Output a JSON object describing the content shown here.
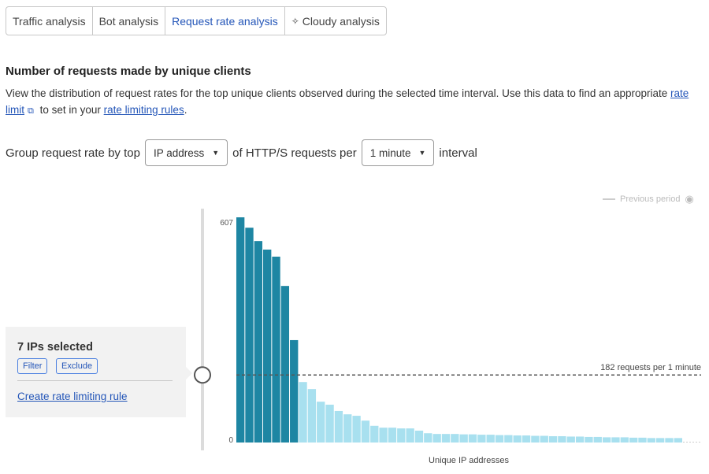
{
  "tabs": [
    {
      "label": "Traffic analysis"
    },
    {
      "label": "Bot analysis"
    },
    {
      "label": "Request rate analysis",
      "active": true
    },
    {
      "label": "Cloudy analysis",
      "icon": "sparkle-icon"
    }
  ],
  "section": {
    "title": "Number of requests made by unique clients",
    "desc_pre": "View the distribution of request rates for the top unique clients observed during the selected time interval. Use this data to find an appropriate ",
    "link1": "rate limit",
    "desc_mid": " to set in your ",
    "link2": "rate limiting rules",
    "desc_post": "."
  },
  "group": {
    "prefix": "Group request rate by top",
    "select1": "IP address",
    "middle": "of HTTP/S requests per",
    "select2": "1 minute",
    "suffix": "interval"
  },
  "legend": {
    "previous": "Previous period"
  },
  "selection": {
    "title": "7 IPs selected",
    "filter": "Filter",
    "exclude": "Exclude",
    "create": "Create rate limiting rule"
  },
  "colors": {
    "selected": "#1e86a3",
    "unselected": "#a8e0ef",
    "accent": "#2456b8"
  },
  "chart_data": {
    "type": "bar",
    "xlabel": "Unique IP addresses",
    "ylim": [
      0,
      607
    ],
    "yticks": [
      "0",
      "607"
    ],
    "threshold": {
      "value": 182,
      "label": "182 requests per 1 minute"
    },
    "selected_count": 7,
    "values": [
      607,
      579,
      543,
      520,
      501,
      422,
      276,
      163,
      144,
      110,
      102,
      85,
      76,
      72,
      59,
      45,
      40,
      40,
      38,
      38,
      32,
      25,
      23,
      23,
      23,
      22,
      22,
      21,
      21,
      20,
      20,
      19,
      19,
      18,
      18,
      17,
      17,
      16,
      16,
      15,
      15,
      14,
      14,
      14,
      13,
      13,
      12,
      12,
      12,
      12
    ]
  }
}
